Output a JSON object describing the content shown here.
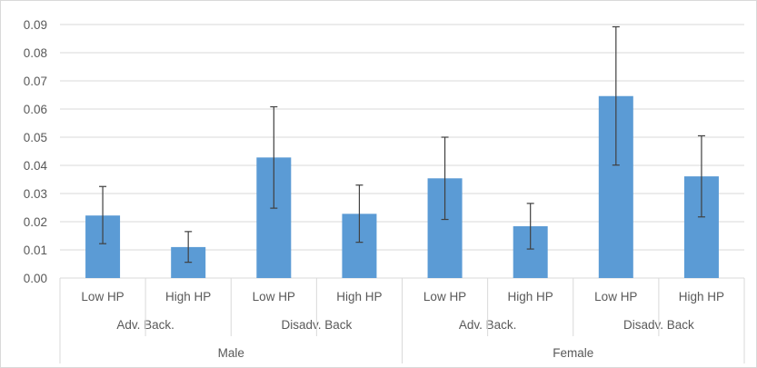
{
  "chart_data": {
    "type": "bar",
    "title": "",
    "xlabel": "",
    "ylabel": "",
    "ylim": [
      0,
      0.09
    ],
    "yticks": [
      "0.00",
      "0.01",
      "0.02",
      "0.03",
      "0.04",
      "0.05",
      "0.06",
      "0.07",
      "0.08",
      "0.09"
    ],
    "grid": true,
    "bar_color": "#5b9bd5",
    "categories": [
      {
        "level1": "Low HP",
        "level2": "Adv. Back.",
        "level3": "Male"
      },
      {
        "level1": "High HP",
        "level2": "Adv. Back.",
        "level3": "Male"
      },
      {
        "level1": "Low HP",
        "level2": "Disadv. Back",
        "level3": "Male"
      },
      {
        "level1": "High HP",
        "level2": "Disadv. Back",
        "level3": "Male"
      },
      {
        "level1": "Low HP",
        "level2": "Adv. Back.",
        "level3": "Female"
      },
      {
        "level1": "High HP",
        "level2": "Adv. Back.",
        "level3": "Female"
      },
      {
        "level1": "Low HP",
        "level2": "Disadv. Back",
        "level3": "Female"
      },
      {
        "level1": "High HP",
        "level2": "Disadv. Back",
        "level3": "Female"
      }
    ],
    "values": [
      0.0222,
      0.011,
      0.0428,
      0.0228,
      0.0354,
      0.0184,
      0.0646,
      0.0361
    ],
    "error_low": [
      0.0122,
      0.0056,
      0.0248,
      0.0127,
      0.0208,
      0.0103,
      0.0401,
      0.0217
    ],
    "error_high": [
      0.0325,
      0.0165,
      0.0608,
      0.033,
      0.05,
      0.0265,
      0.0892,
      0.0505
    ],
    "groups_level2": [
      "Adv. Back.",
      "Disadv. Back",
      "Adv. Back.",
      "Disadv. Back"
    ],
    "groups_level3": [
      "Male",
      "Female"
    ]
  }
}
